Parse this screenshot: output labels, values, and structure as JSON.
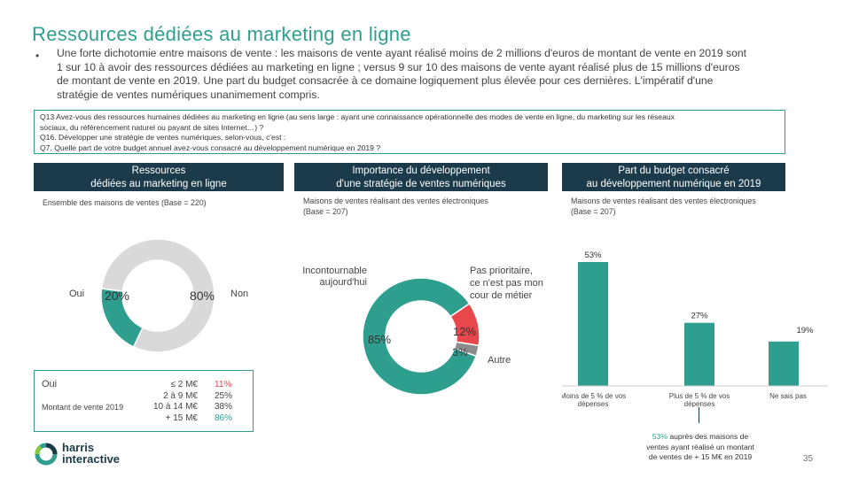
{
  "title": "Ressources dédiées au marketing en ligne",
  "intro": {
    "bullet": "•",
    "lines": [
      "Une forte dichotomie entre maisons de vente : les maisons de vente ayant réalisé moins de 2 millions d'euros de montant de vente en 2019 sont",
      "1 sur 10 à avoir des ressources dédiées au marketing en ligne ; versus 9 sur 10 des maisons de vente ayant réalisé plus de 15 millions d'euros",
      "de montant de vente en 2019. Une part du budget consacrée à ce domaine logiquement plus élevée pour ces dernières. L'impératif d'une",
      "stratégie de ventes numériques unanimement compris."
    ]
  },
  "questions": [
    "Q13 Avez-vous des ressources humaines dédiées au marketing en ligne (au sens large : ayant une connaissance opérationnelle des modes de vente en ligne, du marketing sur les réseaux",
    "sociaux, du référencement naturel ou payant de sites Internet…) ?",
    "Q16. Développer une stratégie de ventes numériques, selon-vous, c'est :",
    "Q7. Quelle part de votre budget annuel avez-vous consacré au développement numérique en 2019 ?"
  ],
  "panel1": {
    "header": [
      "Ressources",
      "dédiées au marketing en ligne"
    ],
    "base": "Ensemble des maisons de ventes (Base = 220)",
    "label_yes": "Oui",
    "label_no": "Non",
    "value_yes": "20%",
    "value_no": "80%",
    "table": {
      "label": "Oui",
      "row_label": "Montant de vente 2019",
      "ranges": [
        "≤ 2 M€",
        "2 à 9 M€",
        "10 à 14 M€",
        "+ 15 M€"
      ],
      "values": [
        "11%",
        "25%",
        "38%",
        "86%"
      ]
    }
  },
  "panel2": {
    "header": [
      "Importance du développement",
      "d'une stratégie de ventes numériques"
    ],
    "base": [
      "Maisons de ventes réalisant des ventes électroniques",
      "(Base = 207)"
    ],
    "label_incontournable": [
      "Incontournable",
      "aujourd'hui"
    ],
    "label_pas_prioritaire": [
      "Pas prioritaire,",
      "ce n'est pas mon",
      "cour de métier"
    ],
    "label_autre": "Autre",
    "value_incontournable": "85%",
    "value_pas_prioritaire": "12%",
    "value_autre": "3%"
  },
  "panel3": {
    "header": [
      "Part du budget consacré",
      "au développement numérique en 2019"
    ],
    "base": [
      "Maisons de ventes réalisant des ventes électroniques",
      "(Base = 207)"
    ],
    "bar_labels": [
      "53%",
      "27%",
      "19%"
    ],
    "categories_text": [
      [
        "Moins de 5 % de vos",
        "dépenses"
      ],
      [
        "Plus de 5 % de vos",
        "dépenses"
      ],
      [
        "Ne sais pas"
      ]
    ],
    "note_highlight": "53%",
    "note": [
      " auprès des maisons de",
      "ventes ayant réalisé un montant",
      "de ventes de + 15 M€ en 2019"
    ]
  },
  "logo": {
    "line1": "harris",
    "line2": "interactive"
  },
  "page_number": "35",
  "colors": {
    "teal": "#2e9e8f",
    "navy": "#1b3b4b",
    "red": "#e8474c",
    "grey": "#d9d9d9",
    "dark_grey": "#8c8c8c"
  },
  "chart_data": [
    {
      "type": "pie",
      "variant": "donut",
      "categories": [
        "Oui",
        "Non"
      ],
      "values": [
        20,
        80
      ],
      "colors": [
        "#2e9e8f",
        "#d9d9d9"
      ]
    },
    {
      "type": "pie",
      "variant": "donut",
      "categories": [
        "Incontournable aujourd'hui",
        "Pas prioritaire, ce n'est pas mon cour de métier",
        "Autre"
      ],
      "values": [
        85,
        12,
        3
      ],
      "colors": [
        "#2e9e8f",
        "#e8474c",
        "#8c8c8c"
      ]
    },
    {
      "type": "bar",
      "categories": [
        "Moins de 5 % de vos dépenses",
        "Plus de 5 % de vos dépenses",
        "Ne sais pas"
      ],
      "values": [
        53,
        27,
        19
      ],
      "ylim": [
        0,
        60
      ],
      "grid": false,
      "color": "#2e9e8f"
    }
  ]
}
